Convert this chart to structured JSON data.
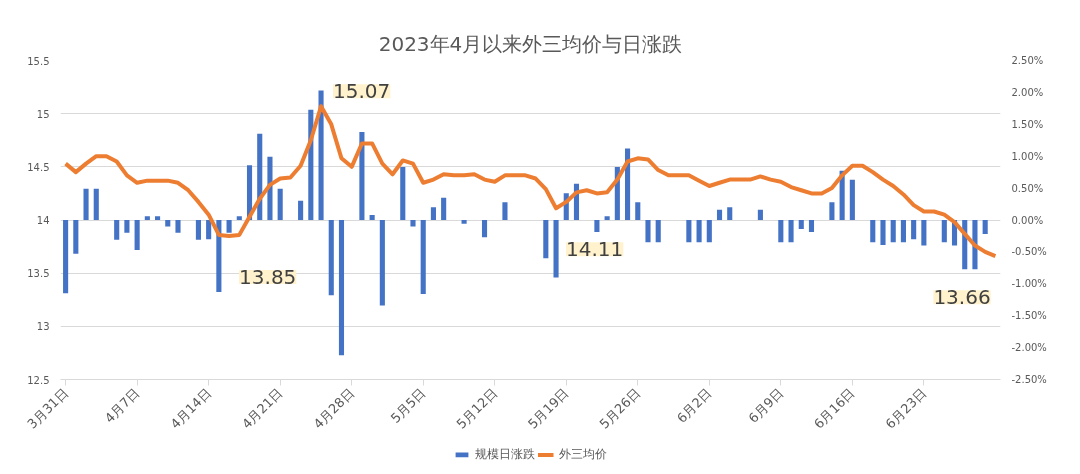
{
  "chart_data": {
    "type": "bar",
    "title": "2023年4月以来外三均价与日涨跌",
    "x": [
      "2023-03-31",
      "2023-04-01",
      "2023-04-02",
      "2023-04-03",
      "2023-04-04",
      "2023-04-05",
      "2023-04-06",
      "2023-04-07",
      "2023-04-08",
      "2023-04-09",
      "2023-04-10",
      "2023-04-11",
      "2023-04-12",
      "2023-04-13",
      "2023-04-14",
      "2023-04-15",
      "2023-04-16",
      "2023-04-17",
      "2023-04-18",
      "2023-04-19",
      "2023-04-20",
      "2023-04-21",
      "2023-04-22",
      "2023-04-23",
      "2023-04-24",
      "2023-04-25",
      "2023-04-26",
      "2023-04-27",
      "2023-04-28",
      "2023-04-29",
      "2023-04-30",
      "2023-05-01",
      "2023-05-02",
      "2023-05-03",
      "2023-05-04",
      "2023-05-05",
      "2023-05-06",
      "2023-05-07",
      "2023-05-08",
      "2023-05-09",
      "2023-05-10",
      "2023-05-11",
      "2023-05-12",
      "2023-05-13",
      "2023-05-14",
      "2023-05-15",
      "2023-05-16",
      "2023-05-17",
      "2023-05-18",
      "2023-05-19",
      "2023-05-20",
      "2023-05-21",
      "2023-05-22",
      "2023-05-23",
      "2023-05-24",
      "2023-05-25",
      "2023-05-26",
      "2023-05-27",
      "2023-05-28",
      "2023-05-29",
      "2023-05-30",
      "2023-05-31",
      "2023-06-01",
      "2023-06-02",
      "2023-06-03",
      "2023-06-04",
      "2023-06-05",
      "2023-06-06",
      "2023-06-07",
      "2023-06-08",
      "2023-06-09",
      "2023-06-10",
      "2023-06-11",
      "2023-06-12",
      "2023-06-13",
      "2023-06-14",
      "2023-06-15",
      "2023-06-16",
      "2023-06-17",
      "2023-06-18",
      "2023-06-19",
      "2023-06-20",
      "2023-06-21",
      "2023-06-22",
      "2023-06-23",
      "2023-06-24",
      "2023-06-25",
      "2023-06-26",
      "2023-06-27",
      "2023-06-28",
      "2023-06-29",
      "2023-06-30"
    ],
    "series": [
      {
        "name": "规模日涨跌",
        "axis": "y2",
        "color": "#4472c4",
        "values": [
          -1.15,
          -0.53,
          0.49,
          0.49,
          null,
          -0.31,
          -0.2,
          -0.47,
          0.06,
          0.06,
          -0.1,
          -0.2,
          null,
          -0.31,
          -0.3,
          -1.13,
          -0.2,
          0.06,
          0.86,
          1.35,
          0.99,
          0.49,
          null,
          0.3,
          1.73,
          2.03,
          -1.18,
          -2.12,
          null,
          1.38,
          0.08,
          -1.34,
          null,
          0.83,
          -0.1,
          -1.16,
          0.2,
          0.35,
          null,
          -0.06,
          null,
          -0.27,
          null,
          0.28,
          null,
          null,
          null,
          -0.6,
          -0.9,
          0.42,
          0.57,
          null,
          -0.19,
          0.06,
          0.83,
          1.12,
          0.28,
          -0.35,
          -0.35,
          null,
          null,
          -0.35,
          -0.35,
          -0.35,
          0.16,
          0.2,
          null,
          null,
          0.16,
          null,
          -0.35,
          -0.35,
          -0.14,
          -0.19,
          null,
          0.28,
          0.77,
          0.63,
          null,
          -0.35,
          -0.39,
          -0.35,
          -0.35,
          -0.3,
          -0.4,
          null,
          -0.35,
          -0.4,
          -0.77,
          -0.77,
          -0.22,
          null
        ]
      },
      {
        "name": "外三均价",
        "type": "line",
        "color": "#ed7d31",
        "values": [
          14.53,
          14.45,
          14.53,
          14.6,
          14.6,
          14.55,
          14.42,
          14.35,
          14.37,
          14.37,
          14.37,
          14.35,
          14.28,
          14.17,
          14.05,
          13.86,
          13.85,
          13.86,
          14.03,
          14.2,
          14.33,
          14.39,
          14.4,
          14.51,
          14.75,
          15.07,
          14.9,
          14.58,
          14.5,
          14.72,
          14.72,
          14.53,
          14.43,
          14.56,
          14.53,
          14.35,
          14.38,
          14.43,
          14.42,
          14.42,
          14.43,
          14.38,
          14.36,
          14.42,
          14.42,
          14.42,
          14.39,
          14.29,
          14.11,
          14.17,
          14.26,
          14.28,
          14.25,
          14.26,
          14.38,
          14.55,
          14.58,
          14.57,
          14.47,
          14.42,
          14.42,
          14.42,
          14.37,
          14.32,
          14.35,
          14.38,
          14.38,
          14.38,
          14.41,
          14.38,
          14.36,
          14.31,
          14.28,
          14.25,
          14.25,
          14.3,
          14.42,
          14.51,
          14.51,
          14.45,
          14.38,
          14.32,
          14.24,
          14.14,
          14.08,
          14.08,
          14.05,
          13.98,
          13.87,
          13.76,
          13.7,
          13.66
        ]
      }
    ],
    "annotations": [
      {
        "text": "15.07",
        "x": "2023-04-25",
        "y": 15.07
      },
      {
        "text": "13.85",
        "x": "2023-04-16",
        "y": 13.85
      },
      {
        "text": "14.11",
        "x": "2023-05-18",
        "y": 14.11
      },
      {
        "text": "13.66",
        "x": "2023-06-30",
        "y": 13.66
      }
    ],
    "xlim": [
      "2023-03-30T12:00",
      "2023-06-30T12:00"
    ],
    "xticks": [
      {
        "value": "2023-03-31",
        "label": "3月31日"
      },
      {
        "value": "2023-04-07",
        "label": "4月7日"
      },
      {
        "value": "2023-04-14",
        "label": "4月14日"
      },
      {
        "value": "2023-04-21",
        "label": "4月21日"
      },
      {
        "value": "2023-04-28",
        "label": "4月28日"
      },
      {
        "value": "2023-05-05",
        "label": "5月5日"
      },
      {
        "value": "2023-05-12",
        "label": "5月12日"
      },
      {
        "value": "2023-05-19",
        "label": "5月19日"
      },
      {
        "value": "2023-05-26",
        "label": "5月26日"
      },
      {
        "value": "2023-06-02",
        "label": "6月2日"
      },
      {
        "value": "2023-06-09",
        "label": "6月9日"
      },
      {
        "value": "2023-06-16",
        "label": "6月16日"
      },
      {
        "value": "2023-06-23",
        "label": "6月23日"
      }
    ],
    "ylim": [
      12.5,
      15.5
    ],
    "yticks": [
      12.5,
      13,
      13.5,
      14,
      14.5,
      15,
      15.5
    ],
    "y2lim": [
      -2.5,
      2.5
    ],
    "y2ticks": [
      {
        "value": -2.5,
        "label": "-2.50%"
      },
      {
        "value": -2,
        "label": "-2.00%"
      },
      {
        "value": -1.5,
        "label": "-1.50%"
      },
      {
        "value": -1,
        "label": "-1.00%"
      },
      {
        "value": -0.5,
        "label": "-0.50%"
      },
      {
        "value": 0,
        "label": "0.00%"
      },
      {
        "value": 0.5,
        "label": "0.50%"
      },
      {
        "value": 1,
        "label": "1.00%"
      },
      {
        "value": 1.5,
        "label": "1.50%"
      },
      {
        "value": 2,
        "label": "2.00%"
      },
      {
        "value": 2.5,
        "label": "2.50%"
      }
    ],
    "grid": "y",
    "legend": "bottom",
    "line_style": "solid",
    "marker": "none"
  }
}
